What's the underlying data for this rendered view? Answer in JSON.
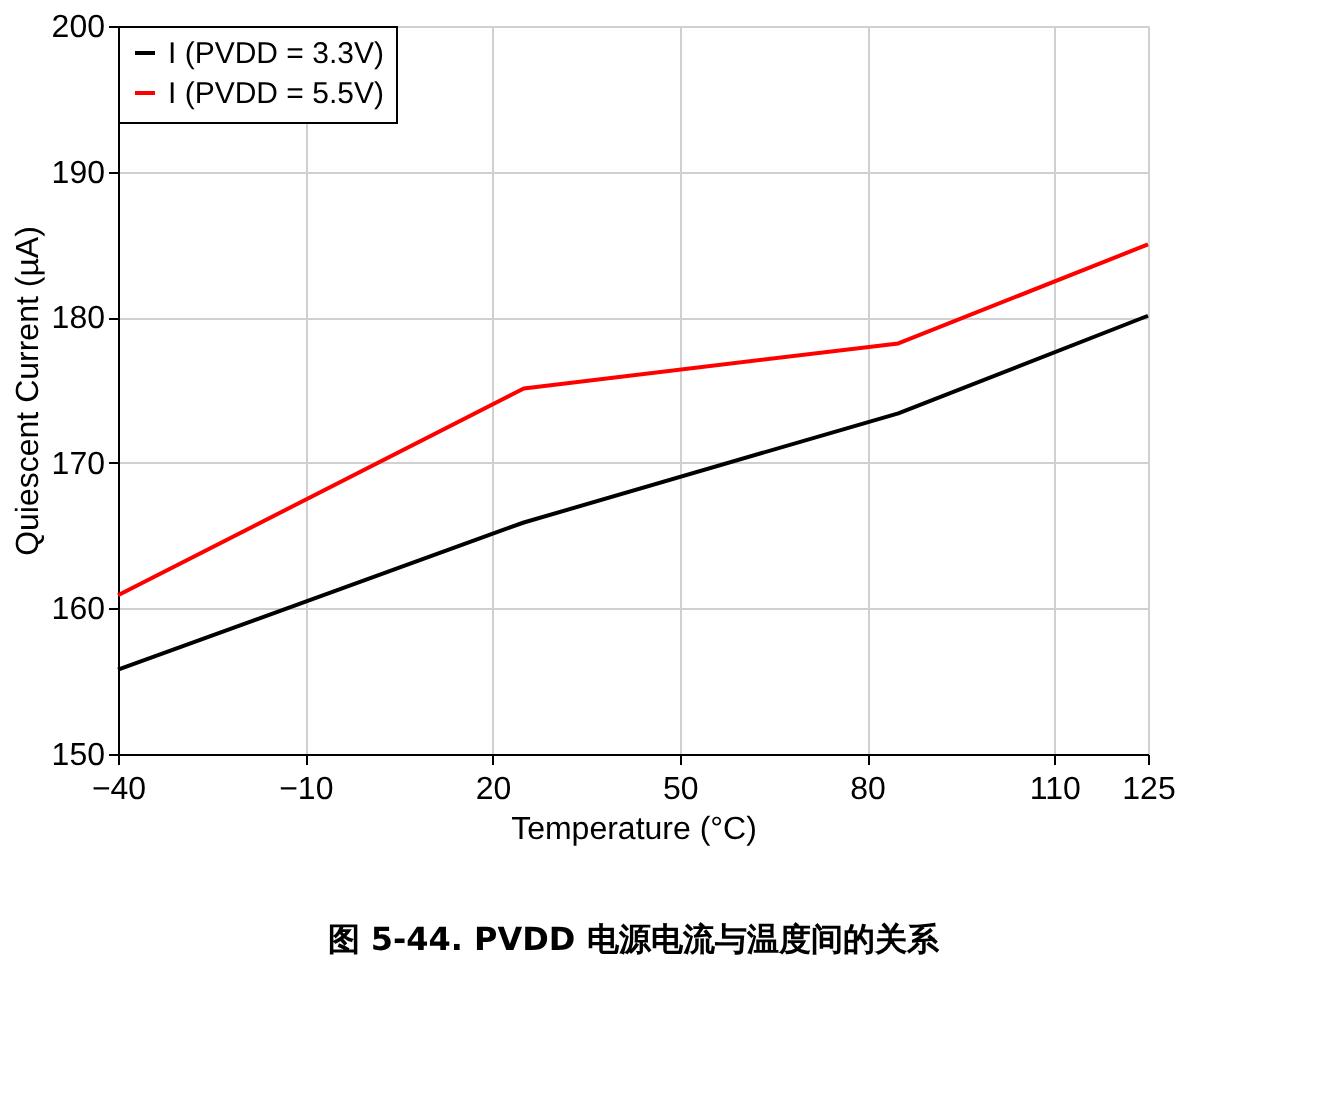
{
  "chart_data": {
    "type": "line",
    "title": "图 5-44. PVDD 电源电流与温度间的关系",
    "xlabel": "Temperature (°C)",
    "ylabel": "Quiescent Current (µA)",
    "x": [
      -40,
      25,
      85,
      125
    ],
    "series": [
      {
        "name": "I (PVDD = 3.3V)",
        "color": "#000000",
        "values": [
          155.8,
          165.9,
          173.4,
          180.1
        ]
      },
      {
        "name": "I (PVDD = 5.5V)",
        "color": "#ff0000",
        "values": [
          160.9,
          175.1,
          178.2,
          185
        ]
      }
    ],
    "xlim": [
      -40,
      125
    ],
    "xticks": [
      -40,
      -10,
      20,
      50,
      80,
      110,
      125
    ],
    "ylim": [
      150,
      200
    ],
    "yticks": [
      150,
      160,
      170,
      180,
      190,
      200
    ],
    "grid": true,
    "legend": "top left",
    "marker": "none",
    "line_style": "solid"
  }
}
